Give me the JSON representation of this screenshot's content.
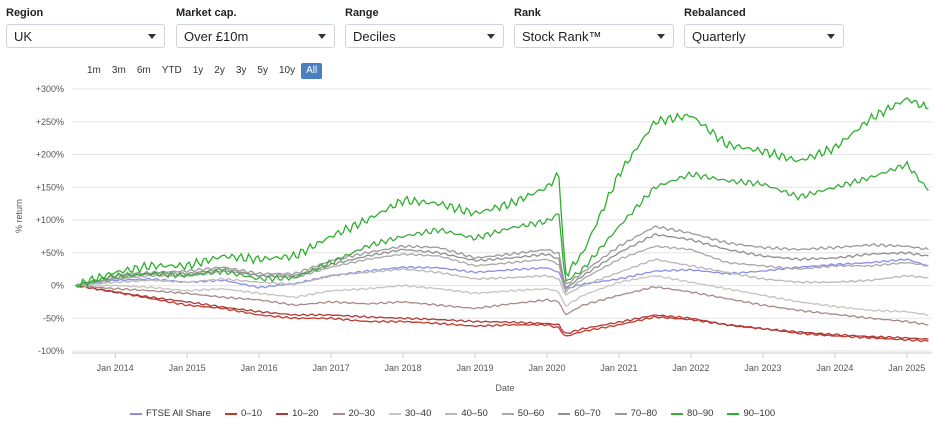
{
  "filters": [
    {
      "label": "Region",
      "value": "UK"
    },
    {
      "label": "Market cap.",
      "value": "Over £10m"
    },
    {
      "label": "Range",
      "value": "Deciles"
    },
    {
      "label": "Rank",
      "value": "Stock Rank™"
    },
    {
      "label": "Rebalanced",
      "value": "Quarterly"
    }
  ],
  "zoom_buttons": [
    "1m",
    "3m",
    "6m",
    "YTD",
    "1y",
    "2y",
    "3y",
    "5y",
    "10y",
    "All"
  ],
  "zoom_active": "All",
  "chart_data": {
    "type": "line",
    "title": "",
    "xlabel": "Date",
    "ylabel": "% return",
    "xlim": [
      2013.4,
      2025.35
    ],
    "ylim": [
      -100,
      300
    ],
    "y_ticks": [
      300,
      250,
      200,
      150,
      100,
      50,
      0,
      -50,
      -100
    ],
    "y_tick_labels": [
      "+300%",
      "+250%",
      "+200%",
      "+150%",
      "+100%",
      "+50%",
      "0%",
      "-50%",
      "-100%"
    ],
    "x_ticks": [
      2014,
      2015,
      2016,
      2017,
      2018,
      2019,
      2020,
      2021,
      2022,
      2023,
      2024,
      2025
    ],
    "x_tick_labels": [
      "Jan 2014",
      "Jan 2015",
      "Jan 2016",
      "Jan 2017",
      "Jan 2018",
      "Jan 2019",
      "Jan 2020",
      "Jan 2021",
      "Jan 2022",
      "Jan 2023",
      "Jan 2024",
      "Jan 2025"
    ],
    "grid": true,
    "legend_position": "bottom",
    "x": [
      2013.45,
      2014.0,
      2014.5,
      2015.0,
      2015.5,
      2016.0,
      2016.5,
      2017.0,
      2017.5,
      2018.0,
      2018.5,
      2019.0,
      2019.5,
      2020.0,
      2020.17,
      2020.25,
      2020.5,
      2021.0,
      2021.5,
      2022.0,
      2022.5,
      2023.0,
      2023.5,
      2024.0,
      2024.5,
      2025.0,
      2025.3
    ],
    "series": [
      {
        "name": "FTSE All Share",
        "color": "#8a8ee8",
        "values": [
          0,
          8,
          10,
          5,
          8,
          -3,
          3,
          15,
          22,
          28,
          27,
          20,
          24,
          27,
          20,
          -5,
          2,
          10,
          22,
          24,
          18,
          22,
          28,
          32,
          35,
          40,
          30
        ]
      },
      {
        "name": "0–10",
        "color": "#c0392b",
        "values": [
          0,
          -10,
          -20,
          -30,
          -35,
          -45,
          -50,
          -50,
          -55,
          -55,
          -58,
          -62,
          -60,
          -60,
          -65,
          -78,
          -70,
          -60,
          -48,
          -52,
          -60,
          -66,
          -73,
          -77,
          -80,
          -83,
          -85
        ]
      },
      {
        "name": "10–20",
        "color": "#b03a3a",
        "values": [
          0,
          -10,
          -18,
          -25,
          -33,
          -40,
          -45,
          -45,
          -48,
          -50,
          -52,
          -55,
          -56,
          -58,
          -60,
          -74,
          -66,
          -56,
          -45,
          -50,
          -60,
          -66,
          -71,
          -75,
          -78,
          -80,
          -82
        ]
      },
      {
        "name": "20–30",
        "color": "#a88a8a",
        "values": [
          0,
          -5,
          -8,
          -12,
          -18,
          -22,
          -30,
          -25,
          -28,
          -25,
          -30,
          -35,
          -28,
          -22,
          -25,
          -45,
          -30,
          -15,
          -2,
          -10,
          -20,
          -30,
          -38,
          -44,
          -50,
          -55,
          -60
        ]
      },
      {
        "name": "30–40",
        "color": "#c8c2c2",
        "values": [
          0,
          0,
          -3,
          -8,
          -5,
          -12,
          -18,
          -8,
          -5,
          0,
          -5,
          -12,
          -8,
          -5,
          -10,
          -32,
          -15,
          5,
          15,
          5,
          -5,
          -15,
          -25,
          -32,
          -38,
          -40,
          -45
        ]
      },
      {
        "name": "40–50",
        "color": "#b9b9b9",
        "values": [
          0,
          5,
          8,
          5,
          10,
          5,
          2,
          15,
          20,
          25,
          20,
          10,
          12,
          15,
          10,
          -15,
          0,
          20,
          40,
          30,
          20,
          10,
          5,
          5,
          8,
          15,
          12
        ]
      },
      {
        "name": "50–60",
        "color": "#a9a9a9",
        "values": [
          0,
          10,
          15,
          15,
          22,
          15,
          12,
          28,
          40,
          48,
          45,
          30,
          35,
          40,
          32,
          -10,
          10,
          40,
          60,
          55,
          35,
          30,
          25,
          30,
          30,
          35,
          30
        ]
      },
      {
        "name": "60–70",
        "color": "#8f8f8f",
        "values": [
          0,
          12,
          18,
          18,
          25,
          15,
          15,
          32,
          45,
          55,
          50,
          38,
          42,
          48,
          40,
          -5,
          15,
          50,
          78,
          70,
          55,
          45,
          40,
          42,
          48,
          50,
          45
        ]
      },
      {
        "name": "70–80",
        "color": "#9a9a9a",
        "values": [
          0,
          15,
          20,
          22,
          28,
          18,
          18,
          38,
          50,
          60,
          58,
          42,
          48,
          55,
          48,
          0,
          20,
          60,
          90,
          80,
          65,
          58,
          55,
          58,
          62,
          60,
          55
        ]
      },
      {
        "name": "80–90",
        "color": "#3daa3d",
        "values": [
          0,
          15,
          18,
          15,
          22,
          10,
          12,
          35,
          60,
          75,
          85,
          72,
          88,
          98,
          110,
          5,
          25,
          90,
          150,
          170,
          160,
          155,
          135,
          150,
          165,
          185,
          145
        ]
      },
      {
        "name": "90–100",
        "color": "#2cb02c",
        "values": [
          0,
          20,
          30,
          30,
          45,
          40,
          45,
          75,
          100,
          130,
          125,
          110,
          125,
          150,
          170,
          15,
          50,
          170,
          250,
          260,
          215,
          205,
          190,
          210,
          255,
          285,
          270
        ]
      }
    ]
  }
}
